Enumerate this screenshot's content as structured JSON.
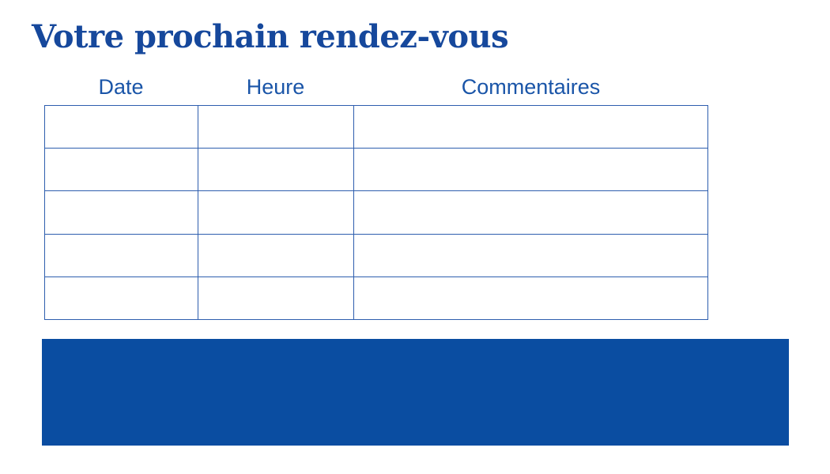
{
  "page": {
    "title": "Votre prochain rendez-vous"
  },
  "table": {
    "columns": [
      {
        "id": "date",
        "label": "Date"
      },
      {
        "id": "heure",
        "label": "Heure"
      },
      {
        "id": "commentaires",
        "label": "Commentaires"
      }
    ],
    "rows": [
      [
        "",
        "",
        ""
      ],
      [
        "",
        "",
        ""
      ],
      [
        "",
        "",
        ""
      ],
      [
        "",
        "",
        ""
      ],
      [
        "",
        "",
        ""
      ]
    ]
  },
  "banner": {
    "text": ""
  },
  "colors": {
    "background": "#FFFFFF",
    "title_text": "#16489C",
    "header_text": "#1A55A8",
    "table_border": "#2E5EAE",
    "banner_fill": "#0A4DA1"
  }
}
